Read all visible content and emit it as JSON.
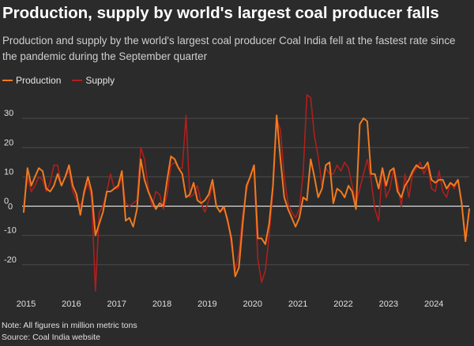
{
  "header": {
    "title": "Production, supply by world's largest coal producer falls",
    "subtitle": "Production and supply by the world's largest coal producer Coal India fell at the fastest rate since the pandemic during the September quarter"
  },
  "footer": {
    "note": "Note: All figures in million metric tons",
    "source": "Source: Coal India website"
  },
  "colors": {
    "background": "#2b2b2b",
    "production": "#f07b1f",
    "supply": "#b01f1c",
    "grid": "#4d4d4d",
    "zero_line": "#ffffff"
  },
  "chart_data": {
    "type": "line",
    "title": "Production, supply by world's largest coal producer falls",
    "xlabel": "",
    "ylabel": "",
    "x_start": "2015-01",
    "x_end": "2024-09",
    "x_frequency": "monthly",
    "xlim": [
      "2015-01",
      "2024-11"
    ],
    "x_tick_labels": [
      "2015",
      "2016",
      "2017",
      "2018",
      "2019",
      "2020",
      "2021",
      "2022",
      "2023",
      "2024"
    ],
    "ylim": [
      -30,
      40
    ],
    "y_ticks": [
      -20,
      -10,
      0,
      10,
      20,
      30
    ],
    "y_tick_labels": [
      "-20",
      "-10",
      "0",
      "10",
      "20",
      "30"
    ],
    "grid": true,
    "legend_position": "top-left",
    "unit": "million metric tons",
    "series": [
      {
        "name": "Production",
        "color": "#f07b1f",
        "values": [
          -2,
          13,
          7,
          10,
          13,
          12,
          6,
          5,
          7,
          11,
          7,
          10,
          14,
          7,
          4,
          -3,
          5,
          10,
          5,
          -10,
          -6,
          -2,
          5,
          5,
          6,
          7,
          12,
          -5,
          -4,
          -7,
          -1,
          16,
          9,
          5,
          2,
          -1,
          1,
          0,
          9,
          17,
          16,
          13,
          11,
          3,
          4,
          8,
          2,
          1,
          2,
          4,
          9,
          0,
          -2,
          0,
          -5,
          -11,
          -24,
          -21,
          -6,
          7,
          10,
          14,
          -11,
          -11,
          -13,
          -6,
          7,
          31,
          16,
          3,
          -1,
          -4,
          -7,
          -4,
          3,
          2,
          16,
          10,
          3,
          6,
          14,
          15,
          1,
          6,
          5,
          3,
          7,
          5,
          -1,
          28,
          30,
          29,
          11,
          11,
          6,
          13,
          7,
          12,
          13,
          5,
          3,
          7,
          9,
          12,
          14,
          13,
          13,
          15,
          9,
          8,
          9,
          9,
          6,
          8,
          7,
          9,
          1,
          -12,
          -1
        ]
      },
      {
        "name": "Supply",
        "color": "#b01f1c",
        "values": [
          0,
          10,
          5,
          7,
          10,
          9,
          5,
          8,
          14,
          14,
          7,
          10,
          12,
          5,
          2,
          0,
          4,
          8,
          3,
          -29,
          -2,
          0,
          5,
          11,
          6,
          6,
          10,
          1,
          0,
          1,
          2,
          20,
          16,
          6,
          0,
          5,
          4,
          -1,
          4,
          14,
          15,
          13,
          13,
          31,
          3,
          4,
          7,
          1,
          -2,
          2,
          7,
          0,
          -2,
          -1,
          -4,
          -13,
          -22,
          -16,
          -3,
          5,
          11,
          13,
          -18,
          -26,
          -22,
          -10,
          5,
          30,
          26,
          10,
          1,
          -2,
          -4,
          -1,
          11,
          38,
          37,
          24,
          17,
          7,
          13,
          11,
          11,
          14,
          12,
          15,
          13,
          7,
          1,
          6,
          11,
          16,
          9,
          -1,
          -5,
          13,
          3,
          6,
          13,
          8,
          0,
          11,
          3,
          11,
          13,
          15,
          11,
          14,
          6,
          5,
          12,
          5,
          3,
          8,
          6,
          9,
          1,
          -10,
          -2
        ]
      }
    ]
  }
}
